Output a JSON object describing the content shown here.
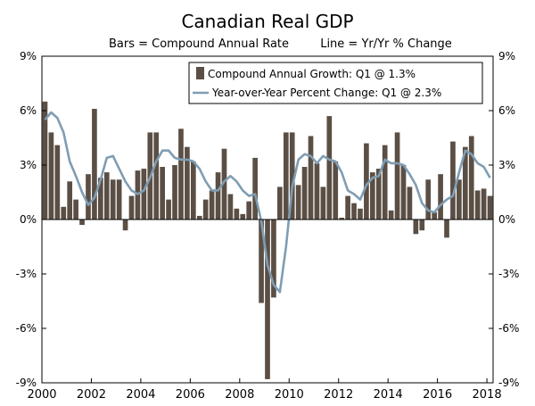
{
  "chart_data": {
    "type": "bar",
    "title": "Canadian Real GDP",
    "subtitle_bars": "Bars = Compound Annual Rate",
    "subtitle_line": "Line = Yr/Yr % Change",
    "ylim": [
      -9,
      9
    ],
    "y_ticks": [
      -9,
      -6,
      -3,
      0,
      3,
      6,
      9
    ],
    "y_tick_labels": [
      "-9%",
      "-6%",
      "-3%",
      "0%",
      "3%",
      "6%",
      "9%"
    ],
    "x_range": [
      2000.0,
      2018.25
    ],
    "x_ticks": [
      2000,
      2002,
      2004,
      2006,
      2008,
      2010,
      2012,
      2014,
      2016,
      2018
    ],
    "x_tick_labels": [
      "2000",
      "2002",
      "2004",
      "2006",
      "2008",
      "2010",
      "2012",
      "2014",
      "2016",
      "2018"
    ],
    "legend_position": "top-right",
    "series": [
      {
        "name": "Compound Annual Growth: Q1 @ 1.3%",
        "kind": "bar",
        "color": "#5b4f45",
        "start_year": 2000,
        "values": [
          6.5,
          4.8,
          4.1,
          0.7,
          2.1,
          1.1,
          -0.3,
          2.5,
          6.1,
          2.3,
          2.6,
          2.2,
          2.2,
          -0.6,
          1.3,
          2.7,
          2.8,
          4.8,
          4.8,
          2.9,
          1.1,
          3.0,
          5.0,
          4.0,
          3.2,
          0.2,
          1.1,
          1.6,
          2.6,
          3.9,
          1.4,
          0.6,
          0.3,
          1.0,
          3.4,
          -4.6,
          -8.8,
          -4.3,
          1.8,
          4.8,
          4.8,
          1.9,
          2.9,
          4.6,
          3.1,
          1.8,
          5.7,
          3.2,
          0.1,
          1.3,
          0.9,
          0.6,
          4.2,
          2.6,
          2.8,
          4.1,
          0.5,
          4.8,
          3.0,
          1.8,
          -0.8,
          -0.6,
          2.2,
          0.4,
          2.5,
          -1.0,
          4.3,
          2.2,
          4.0,
          4.6,
          1.6,
          1.7,
          1.3
        ]
      },
      {
        "name": "Year-over-Year Percent Change: Q1 @ 2.3%",
        "kind": "line",
        "color": "#7f9db3",
        "start_year": 2000,
        "values": [
          5.5,
          5.9,
          5.6,
          4.8,
          3.2,
          2.4,
          1.5,
          0.8,
          1.2,
          2.2,
          3.4,
          3.5,
          2.8,
          2.1,
          1.6,
          1.4,
          1.6,
          2.3,
          3.2,
          3.8,
          3.8,
          3.4,
          3.3,
          3.3,
          3.2,
          2.8,
          2.1,
          1.6,
          1.6,
          2.1,
          2.4,
          2.1,
          1.6,
          1.3,
          1.4,
          -0.1,
          -2.5,
          -3.6,
          -4.0,
          -1.5,
          1.8,
          3.3,
          3.6,
          3.5,
          3.1,
          3.5,
          3.3,
          3.2,
          2.6,
          1.6,
          1.4,
          1.1,
          1.9,
          2.3,
          2.4,
          3.3,
          3.1,
          3.1,
          3.0,
          2.5,
          1.9,
          0.9,
          0.5,
          0.4,
          0.8,
          1.1,
          1.3,
          2.6,
          3.8,
          3.6,
          3.1,
          2.9,
          2.3
        ]
      }
    ]
  }
}
